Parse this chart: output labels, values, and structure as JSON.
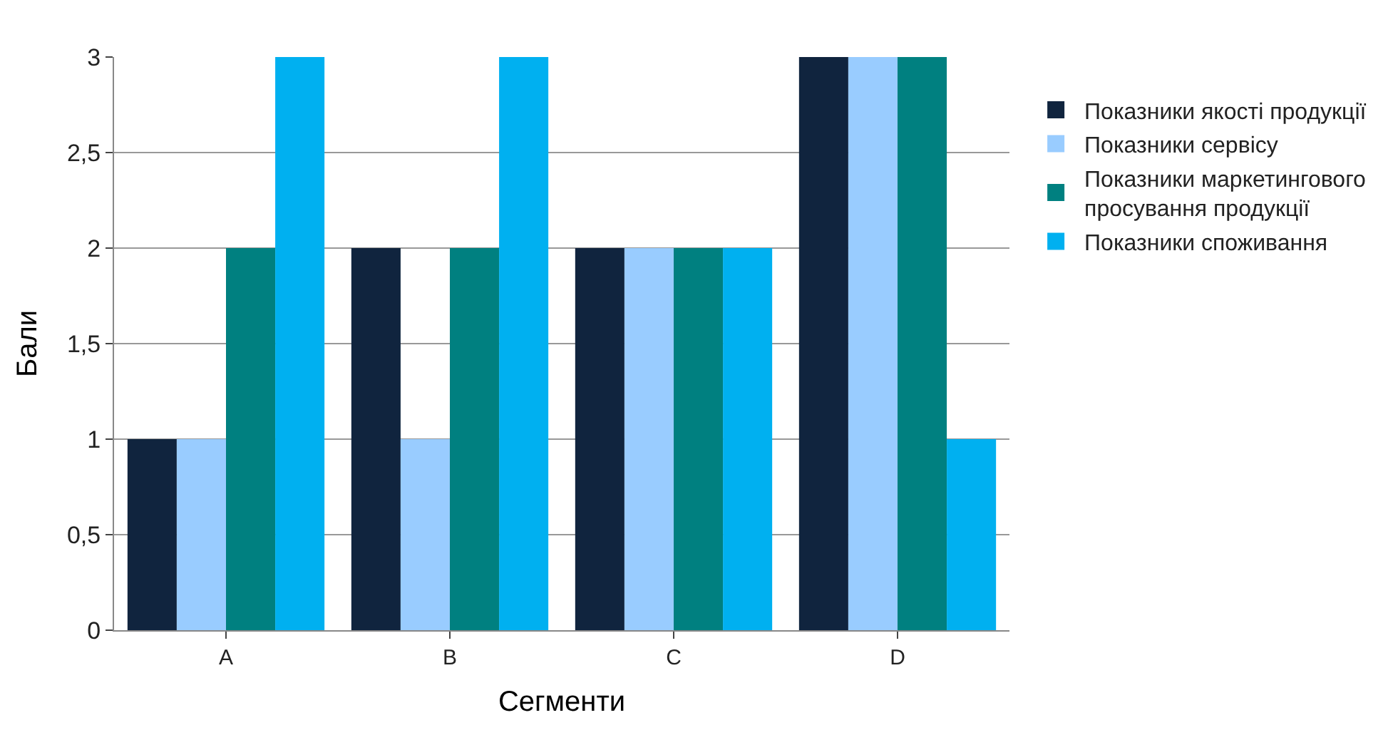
{
  "chart_data": {
    "type": "bar",
    "xlabel": "Сегменти",
    "ylabel": "Бали",
    "categories": [
      "A",
      "B",
      "C",
      "D"
    ],
    "series": [
      {
        "name": "Показники якості продукції",
        "color": "#10243e",
        "values": [
          1,
          2,
          2,
          3
        ]
      },
      {
        "name": "Показники сервісу",
        "color": "#99ccff",
        "values": [
          1,
          1,
          2,
          3
        ]
      },
      {
        "name": "Показники маркетингового просування продукції",
        "color": "#008080",
        "values": [
          2,
          2,
          2,
          3
        ]
      },
      {
        "name": "Показники споживання",
        "color": "#00b0f0",
        "values": [
          3,
          3,
          2,
          1
        ]
      }
    ],
    "ylim": [
      0,
      3
    ],
    "yticks": [
      0,
      {
        "value": 0.5,
        "label": "0,5"
      },
      1,
      {
        "value": 1.5,
        "label": "1,5"
      },
      2,
      {
        "value": 2.5,
        "label": "2,5"
      },
      3
    ],
    "grid": "y",
    "legend": "right"
  }
}
